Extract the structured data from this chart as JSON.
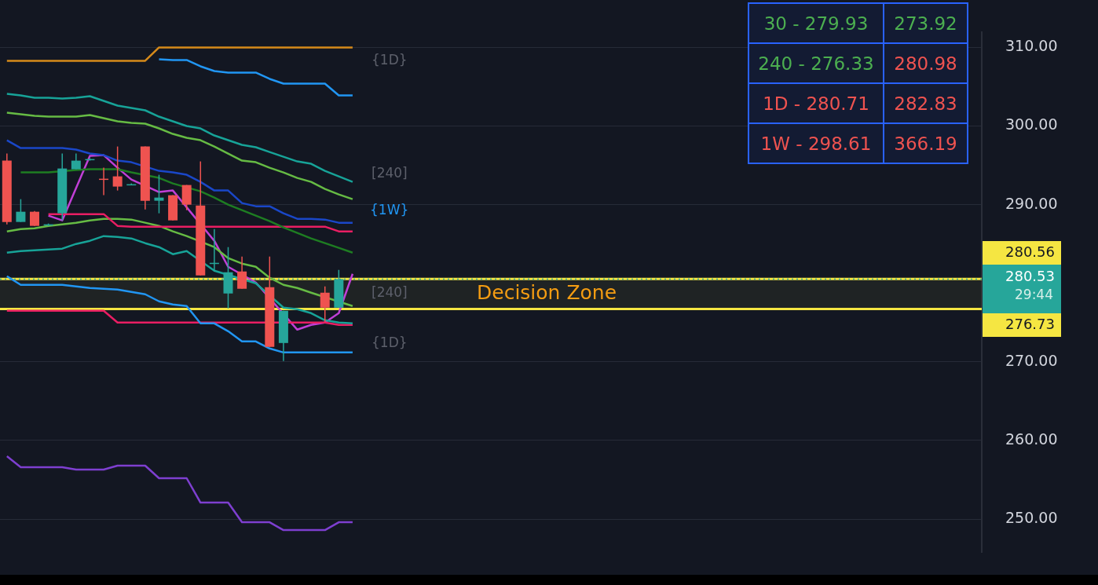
{
  "chart_data": [
    {
      "type": "candlestick",
      "categories": [
        null,
        null,
        null,
        null,
        null,
        null,
        null,
        null,
        null,
        null,
        null,
        null,
        null,
        null,
        null,
        null,
        null,
        null,
        null,
        null,
        null,
        null,
        null,
        null,
        null,
        null,
        null,
        null,
        null,
        null,
        null,
        null,
        null,
        null,
        null,
        null,
        null,
        null,
        null,
        null,
        null,
        null,
        null,
        null,
        null,
        null,
        null,
        null,
        null,
        null,
        null,
        null,
        null,
        null,
        null,
        null,
        null,
        null,
        null,
        null,
        null,
        null,
        null,
        null,
        null,
        null,
        null,
        null,
        null,
        null,
        null
      ],
      "ohlc": [
        [
          295.6,
          296.5,
          287.5,
          287.8
        ],
        [
          287.8,
          290.7,
          287.8,
          289.1
        ],
        [
          289.1,
          289.2,
          287.3,
          287.3
        ],
        [
          287.4,
          287.6,
          287.3,
          287.5
        ],
        [
          288.9,
          296.5,
          288.0,
          294.6
        ],
        [
          294.5,
          296.5,
          294.5,
          295.6
        ],
        [
          295.7,
          295.9,
          295.6,
          295.8
        ],
        [
          293.3,
          294.7,
          291.2,
          293.2
        ],
        [
          293.6,
          297.4,
          291.8,
          292.3
        ],
        [
          292.5,
          292.7,
          292.5,
          292.6
        ],
        [
          297.4,
          297.4,
          289.4,
          290.5
        ],
        [
          290.5,
          293.8,
          288.9,
          290.9
        ],
        [
          291.2,
          291.2,
          288.0,
          288.0
        ],
        [
          292.5,
          292.5,
          289.3,
          290.0
        ],
        [
          289.9,
          295.5,
          281.0,
          281.0
        ],
        [
          282.5,
          286.9,
          281.5,
          282.6
        ],
        [
          278.7,
          284.6,
          276.8,
          281.4
        ],
        [
          281.5,
          283.4,
          279.3,
          279.3
        ],
        null,
        [
          279.5,
          283.4,
          271.9,
          271.9
        ],
        [
          272.4,
          276.5,
          270.1,
          276.5
        ],
        null,
        null,
        [
          278.8,
          279.6,
          275.1,
          276.9
        ],
        [
          276.9,
          281.7,
          276.9,
          280.53
        ],
        null,
        null,
        null,
        null,
        null,
        null,
        null,
        null,
        null,
        null,
        null,
        null,
        null,
        null,
        null,
        null,
        null,
        null,
        null,
        null,
        null,
        null,
        null,
        null,
        null,
        null,
        null,
        null,
        null,
        null,
        null,
        null,
        null,
        null,
        null,
        null,
        null,
        null,
        null,
        null,
        null,
        null,
        null,
        null,
        null,
        null
      ],
      "colors": [
        "#ef5350",
        "#26a69a",
        "#ef5350",
        "#26a69a",
        "#26a69a",
        "#26a69a",
        "#26a69a",
        "#ef5350",
        "#ef5350",
        "#26a69a",
        "#ef5350",
        "#26a69a",
        "#ef5350",
        "#ef5350",
        "#ef5350",
        "#26a69a",
        "#26a69a",
        "#ef5350",
        null,
        "#ef5350",
        "#26a69a",
        null,
        null,
        "#ef5350",
        "#26a69a",
        null,
        null,
        null,
        null,
        null,
        null,
        null,
        null,
        null,
        null,
        null,
        null,
        null,
        null,
        null,
        null,
        null,
        null,
        null,
        null,
        null,
        null,
        null,
        null,
        null,
        null,
        null,
        null,
        null,
        null,
        null,
        null,
        null,
        null,
        null,
        null,
        null,
        null,
        null,
        null,
        null,
        null,
        null,
        null,
        null,
        null
      ],
      "series": [
        {
          "type": "line",
          "color": "#d68a1a",
          "values": [
            308.3,
            308.3,
            308.3,
            308.3,
            308.3,
            308.3,
            308.3,
            308.3,
            308.3,
            308.3,
            308.3,
            310.0,
            310.0,
            310.0,
            310.0,
            310.0,
            310.0,
            310.0,
            310.0,
            310.0,
            310.0,
            310.0,
            310.0,
            310.0,
            310.0,
            310.0,
            null,
            null,
            null,
            null,
            null,
            null,
            null,
            null,
            null,
            null,
            null,
            null,
            null,
            null,
            null,
            null,
            null,
            null,
            null,
            null,
            null,
            null,
            null,
            null,
            null,
            null,
            null,
            null,
            null,
            null,
            null,
            null,
            null,
            null,
            null,
            null,
            null,
            null,
            null,
            null,
            null,
            null,
            null,
            null,
            null
          ]
        },
        {
          "type": "line",
          "color": "#2196f3",
          "values": [
            null,
            null,
            null,
            null,
            null,
            null,
            null,
            null,
            null,
            null,
            null,
            308.5,
            308.4,
            308.4,
            307.6,
            307.0,
            306.8,
            306.8,
            306.8,
            306.0,
            305.4,
            305.4,
            305.4,
            305.4,
            303.9,
            303.9,
            null,
            null,
            null,
            null,
            null,
            null,
            null,
            null,
            null,
            null,
            null,
            null,
            null,
            null,
            null,
            null,
            null,
            null,
            null,
            null,
            null,
            null,
            null,
            null,
            null,
            null,
            null,
            null,
            null,
            null,
            null,
            null,
            null,
            null,
            null,
            null,
            null,
            null,
            null,
            null,
            null,
            null,
            null,
            null,
            null
          ]
        },
        {
          "type": "line",
          "color": "#17a398",
          "values": [
            304.1,
            303.9,
            303.6,
            303.6,
            303.5,
            303.6,
            303.8,
            303.2,
            302.6,
            302.3,
            302.0,
            301.2,
            300.6,
            300.0,
            299.7,
            298.8,
            298.2,
            297.6,
            297.3,
            296.7,
            296.1,
            295.5,
            295.2,
            294.3,
            293.6,
            292.9,
            null,
            null,
            null,
            null,
            null,
            null,
            null,
            null,
            null,
            null,
            null,
            null,
            null,
            null,
            null,
            null,
            null,
            null,
            null,
            null,
            null,
            null,
            null,
            null,
            null,
            null,
            null,
            null,
            null,
            null,
            null,
            null,
            null,
            null,
            null,
            null,
            null,
            null,
            null,
            null,
            null,
            null,
            null,
            null,
            null
          ]
        },
        {
          "type": "line",
          "color": "#66bb44",
          "values": [
            301.7,
            301.5,
            301.3,
            301.2,
            301.2,
            301.2,
            301.4,
            301.0,
            300.6,
            300.4,
            300.3,
            299.7,
            299.0,
            298.5,
            298.2,
            297.4,
            296.5,
            295.6,
            295.4,
            294.7,
            294.1,
            293.4,
            292.9,
            292.0,
            291.3,
            290.7,
            null,
            null,
            null,
            null,
            null,
            null,
            null,
            null,
            null,
            null,
            null,
            null,
            null,
            null,
            null,
            null,
            null,
            null,
            null,
            null,
            null,
            null,
            null,
            null,
            null,
            null,
            null,
            null,
            null,
            null,
            null,
            null,
            null,
            null,
            null,
            null,
            null,
            null,
            null,
            null,
            null,
            null,
            null,
            null,
            null
          ]
        },
        {
          "type": "line",
          "color": "#1a47c8",
          "values": [
            298.2,
            297.2,
            297.2,
            297.2,
            297.2,
            297.0,
            296.5,
            296.3,
            295.6,
            295.4,
            null,
            294.3,
            294.1,
            293.8,
            292.9,
            291.8,
            291.8,
            290.2,
            289.8,
            289.8,
            288.9,
            288.2,
            288.2,
            288.1,
            287.7,
            287.7,
            null,
            null,
            null,
            null,
            null,
            null,
            null,
            null,
            null,
            null,
            null,
            null,
            null,
            null,
            null,
            null,
            null,
            null,
            null,
            null,
            null,
            null,
            null,
            null,
            null,
            null,
            null,
            null,
            null,
            null,
            null,
            null,
            null,
            null,
            null,
            null,
            null,
            null,
            null,
            null,
            null,
            null,
            null,
            null,
            null
          ]
        },
        {
          "type": "line",
          "color": "#1e7d22",
          "values": [
            null,
            294.1,
            294.1,
            294.1,
            null,
            294.4,
            294.5,
            294.5,
            294.5,
            294.1,
            null,
            293.4,
            292.7,
            null,
            291.7,
            290.9,
            290.0,
            289.3,
            288.6,
            287.9,
            287.1,
            286.4,
            285.7,
            285.1,
            284.5,
            283.9,
            null,
            null,
            null,
            null,
            null,
            null,
            null,
            null,
            null,
            null,
            null,
            null,
            null,
            null,
            null,
            null,
            null,
            null,
            null,
            null,
            null,
            null,
            null,
            null,
            null,
            null,
            null,
            null,
            null,
            null,
            null,
            null,
            null,
            null,
            null,
            null,
            null,
            null,
            null,
            null,
            null,
            null,
            null,
            null,
            null
          ]
        },
        {
          "type": "line",
          "color": "#e91e63",
          "values": [
            null,
            null,
            null,
            288.8,
            288.8,
            288.8,
            288.8,
            288.8,
            287.3,
            287.2,
            287.2,
            287.2,
            287.2,
            287.2,
            null,
            287.2,
            287.2,
            287.2,
            287.2,
            287.2,
            287.2,
            287.2,
            287.2,
            287.2,
            286.6,
            286.6,
            null,
            null,
            null,
            null,
            null,
            null,
            null,
            null,
            null,
            null,
            null,
            null,
            null,
            null,
            null,
            null,
            null,
            null,
            null,
            null,
            null,
            null,
            null,
            null,
            null,
            null,
            null,
            null,
            null,
            null,
            null,
            null,
            null,
            null,
            null,
            null,
            null,
            null,
            null,
            null,
            null,
            null,
            null,
            null,
            null
          ]
        },
        {
          "type": "line",
          "color": "#66bb44",
          "values": [
            286.6,
            286.9,
            287.0,
            287.3,
            287.5,
            287.7,
            288.0,
            288.2,
            288.2,
            288.1,
            287.7,
            287.3,
            286.6,
            286.0,
            null,
            284.6,
            283.2,
            282.5,
            282.1,
            280.7,
            279.8,
            279.4,
            278.8,
            null,
            null,
            277.1,
            null,
            null,
            null,
            null,
            null,
            null,
            null,
            null,
            null,
            null,
            null,
            null,
            null,
            null,
            null,
            null,
            null,
            null,
            null,
            null,
            null,
            null,
            null,
            null,
            null,
            null,
            null,
            null,
            null,
            null,
            null,
            null,
            null,
            null,
            null,
            null,
            null,
            null,
            null,
            null,
            null,
            null,
            null,
            null,
            null
          ]
        },
        {
          "type": "line",
          "color": "#17a398",
          "values": [
            283.9,
            284.1,
            284.2,
            284.3,
            284.4,
            285.0,
            285.4,
            286.0,
            285.9,
            285.7,
            285.1,
            284.6,
            283.7,
            284.1,
            null,
            281.6,
            null,
            null,
            280.0,
            null,
            276.9,
            276.7,
            276.2,
            275.3,
            275.0,
            274.9,
            null,
            null,
            null,
            null,
            null,
            null,
            null,
            null,
            null,
            null,
            null,
            null,
            null,
            null,
            null,
            null,
            null,
            null,
            null,
            null,
            null,
            null,
            null,
            null,
            null,
            null,
            null,
            null,
            null,
            null,
            null,
            null,
            null,
            null,
            null,
            null,
            null,
            null,
            null,
            null,
            null,
            null,
            null,
            null,
            null
          ]
        },
        {
          "type": "line",
          "color": "#2196f3",
          "values": [
            280.9,
            279.8,
            279.8,
            279.8,
            279.8,
            279.6,
            279.4,
            279.3,
            279.2,
            278.9,
            278.6,
            277.7,
            277.3,
            277.1,
            274.9,
            274.9,
            273.9,
            272.6,
            272.6,
            271.7,
            271.2,
            271.2,
            271.2,
            271.2,
            271.2,
            271.2,
            null,
            null,
            null,
            null,
            null,
            null,
            null,
            null,
            null,
            null,
            null,
            null,
            null,
            null,
            null,
            null,
            null,
            null,
            null,
            null,
            null,
            null,
            null,
            null,
            null,
            null,
            null,
            null,
            null,
            null,
            null,
            null,
            null,
            null,
            null,
            null,
            null,
            null,
            null,
            null,
            null,
            null,
            null,
            null,
            null
          ]
        },
        {
          "type": "line",
          "color": "#e91e63",
          "values": [
            276.5,
            276.5,
            276.5,
            276.5,
            276.5,
            276.5,
            276.5,
            276.5,
            275.0,
            275.0,
            275.0,
            275.0,
            275.0,
            275.0,
            275.0,
            275.0,
            275.0,
            275.0,
            275.0,
            null,
            null,
            275.0,
            275.0,
            275.0,
            274.7,
            274.7,
            null,
            null,
            null,
            null,
            null,
            null,
            null,
            null,
            null,
            null,
            null,
            null,
            null,
            null,
            null,
            null,
            null,
            null,
            null,
            null,
            null,
            null,
            null,
            null,
            null,
            null,
            null,
            null,
            null,
            null,
            null,
            null,
            null,
            null,
            null,
            null,
            null,
            null,
            null,
            null,
            null,
            null,
            null,
            null,
            null
          ]
        },
        {
          "type": "line",
          "color": "#7e3fd0",
          "values": [
            258.0,
            256.6,
            256.6,
            256.6,
            256.6,
            256.3,
            256.3,
            256.3,
            256.8,
            256.8,
            256.8,
            255.2,
            255.2,
            255.2,
            252.1,
            252.1,
            252.1,
            249.6,
            249.6,
            249.6,
            248.6,
            248.6,
            248.6,
            248.6,
            249.6,
            249.6,
            null,
            null,
            null,
            null,
            null,
            null,
            null,
            null,
            null,
            null,
            null,
            null,
            null,
            null,
            null,
            null,
            null,
            null,
            null,
            null,
            null,
            null,
            null,
            null,
            null,
            null,
            null,
            null,
            null,
            null,
            null,
            null,
            null,
            null,
            null,
            null,
            null,
            null,
            null,
            null,
            null,
            null,
            null,
            null,
            null
          ]
        },
        {
          "type": "line",
          "color": "#c03fd6",
          "values": [
            null,
            null,
            null,
            288.6,
            288.0,
            null,
            296.2,
            296.3,
            294.7,
            293.2,
            null,
            291.6,
            291.8,
            null,
            null,
            285.4,
            282.1,
            null,
            280.1,
            null,
            null,
            274.1,
            274.7,
            275.0,
            276.2,
            281.2,
            null,
            null,
            null,
            null,
            null,
            null,
            null,
            null,
            null,
            null,
            null,
            null,
            null,
            null,
            null,
            null,
            null,
            null,
            null,
            null,
            null,
            null,
            null,
            null,
            null,
            null,
            null,
            null,
            null,
            null,
            null,
            null,
            null,
            null,
            null,
            null,
            null,
            null,
            null,
            null,
            null,
            null,
            null,
            null,
            null
          ]
        }
      ],
      "ylim": [
        245.75,
        311.9
      ],
      "yticks": [
        {
          "value": 250,
          "label": "250.00"
        },
        {
          "value": 260,
          "label": "260.00"
        },
        {
          "value": 270,
          "label": "270.00"
        },
        {
          "value": 290,
          "label": "290.00"
        },
        {
          "value": 300,
          "label": "300.00"
        },
        {
          "value": 310,
          "label": "310.00"
        }
      ],
      "tick_labels": "y",
      "grid": "y",
      "legend": false,
      "bands": [
        {
          "axis": "y",
          "from": 276.73,
          "to": 280.56,
          "label": "Decision Zone",
          "color": "#f5e642"
        }
      ],
      "ref_lines": [
        {
          "axis": "y",
          "value": 280.56,
          "label": "280.56",
          "color": "#f5e642",
          "line_style": "solid"
        },
        {
          "axis": "y",
          "value": 276.73,
          "label": "276.73",
          "color": "#f5e642",
          "line_style": "solid"
        },
        {
          "axis": "y",
          "value": 280.53,
          "label": "280.53",
          "color": "#26a69a",
          "line_style": "dotted"
        }
      ],
      "annotations": [
        "{1D}",
        "[240]",
        "{1W}",
        "[240]",
        "{1D}",
        "29:44"
      ]
    },
    {
      "type": "other",
      "annotations": [
        "30 - 279.93",
        "273.92",
        "240 - 276.33",
        "280.98",
        "1D - 280.71",
        "282.83",
        "1W - 298.61",
        "366.19"
      ],
      "colors": [
        "#4caf50",
        "#4caf50",
        "#4caf50",
        "#ef5350",
        "#ef5350",
        "#ef5350",
        "#ef5350",
        "#ef5350"
      ]
    }
  ]
}
